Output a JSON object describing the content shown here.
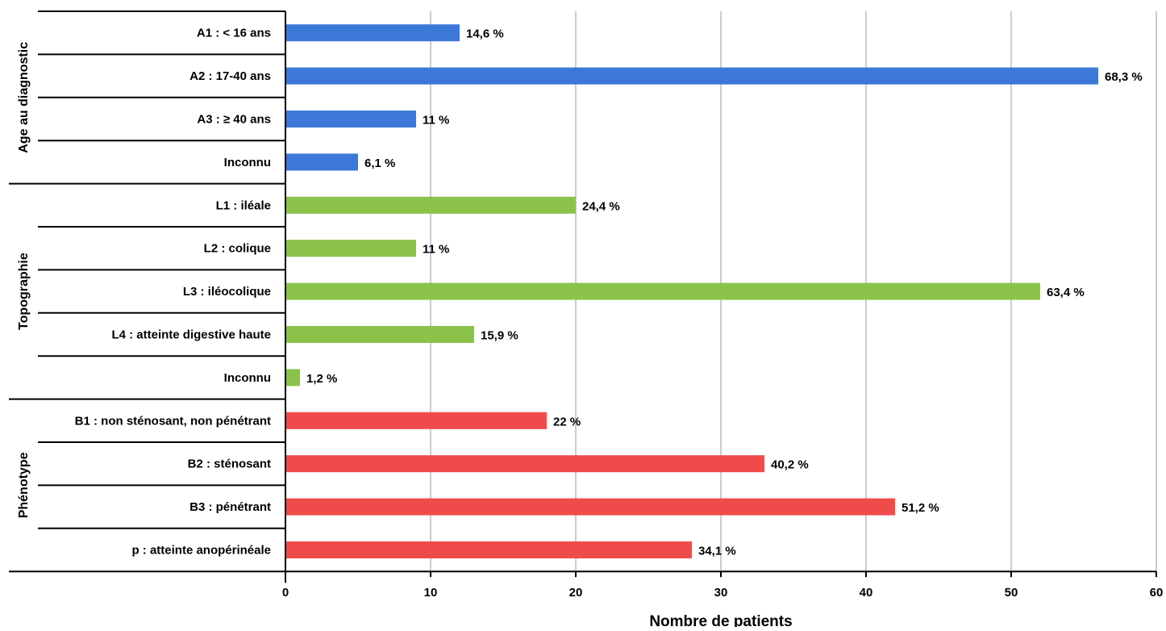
{
  "chart_data": {
    "type": "bar",
    "orientation": "horizontal",
    "xlabel": "Nombre de patients",
    "xlim": [
      0,
      60
    ],
    "xticks": [
      0,
      10,
      20,
      30,
      40,
      50,
      60
    ],
    "grid": true,
    "groups": [
      {
        "name": "Age au diagnostic",
        "color": "#3c78d8",
        "categories": [
          "A1 : < 16 ans",
          "A2 : 17-40 ans",
          "A3 : ≥ 40 ans",
          "Inconnu"
        ],
        "values": [
          12,
          56,
          9,
          5
        ],
        "labels": [
          "14,6 %",
          "68,3 %",
          "11 %",
          "6,1 %"
        ]
      },
      {
        "name": "Topographie",
        "color": "#8bc34a",
        "categories": [
          "L1 : iléale",
          "L2 : colique",
          "L3 : iléocolique",
          "L4 : atteinte digestive haute",
          "Inconnu"
        ],
        "values": [
          20,
          9,
          52,
          13,
          1
        ],
        "labels": [
          "24,4 %",
          "11 %",
          "63,4 %",
          "15,9 %",
          "1,2 %"
        ]
      },
      {
        "name": "Phénotype",
        "color": "#f04b4b",
        "categories": [
          "B1 : non sténosant, non pénétrant",
          "B2 : sténosant",
          "B3 : pénétrant",
          "p : atteinte anopérinéale"
        ],
        "values": [
          18,
          33,
          42,
          28
        ],
        "labels": [
          "22 %",
          "40,2 %",
          "51,2 %",
          "34,1 %"
        ]
      }
    ]
  }
}
